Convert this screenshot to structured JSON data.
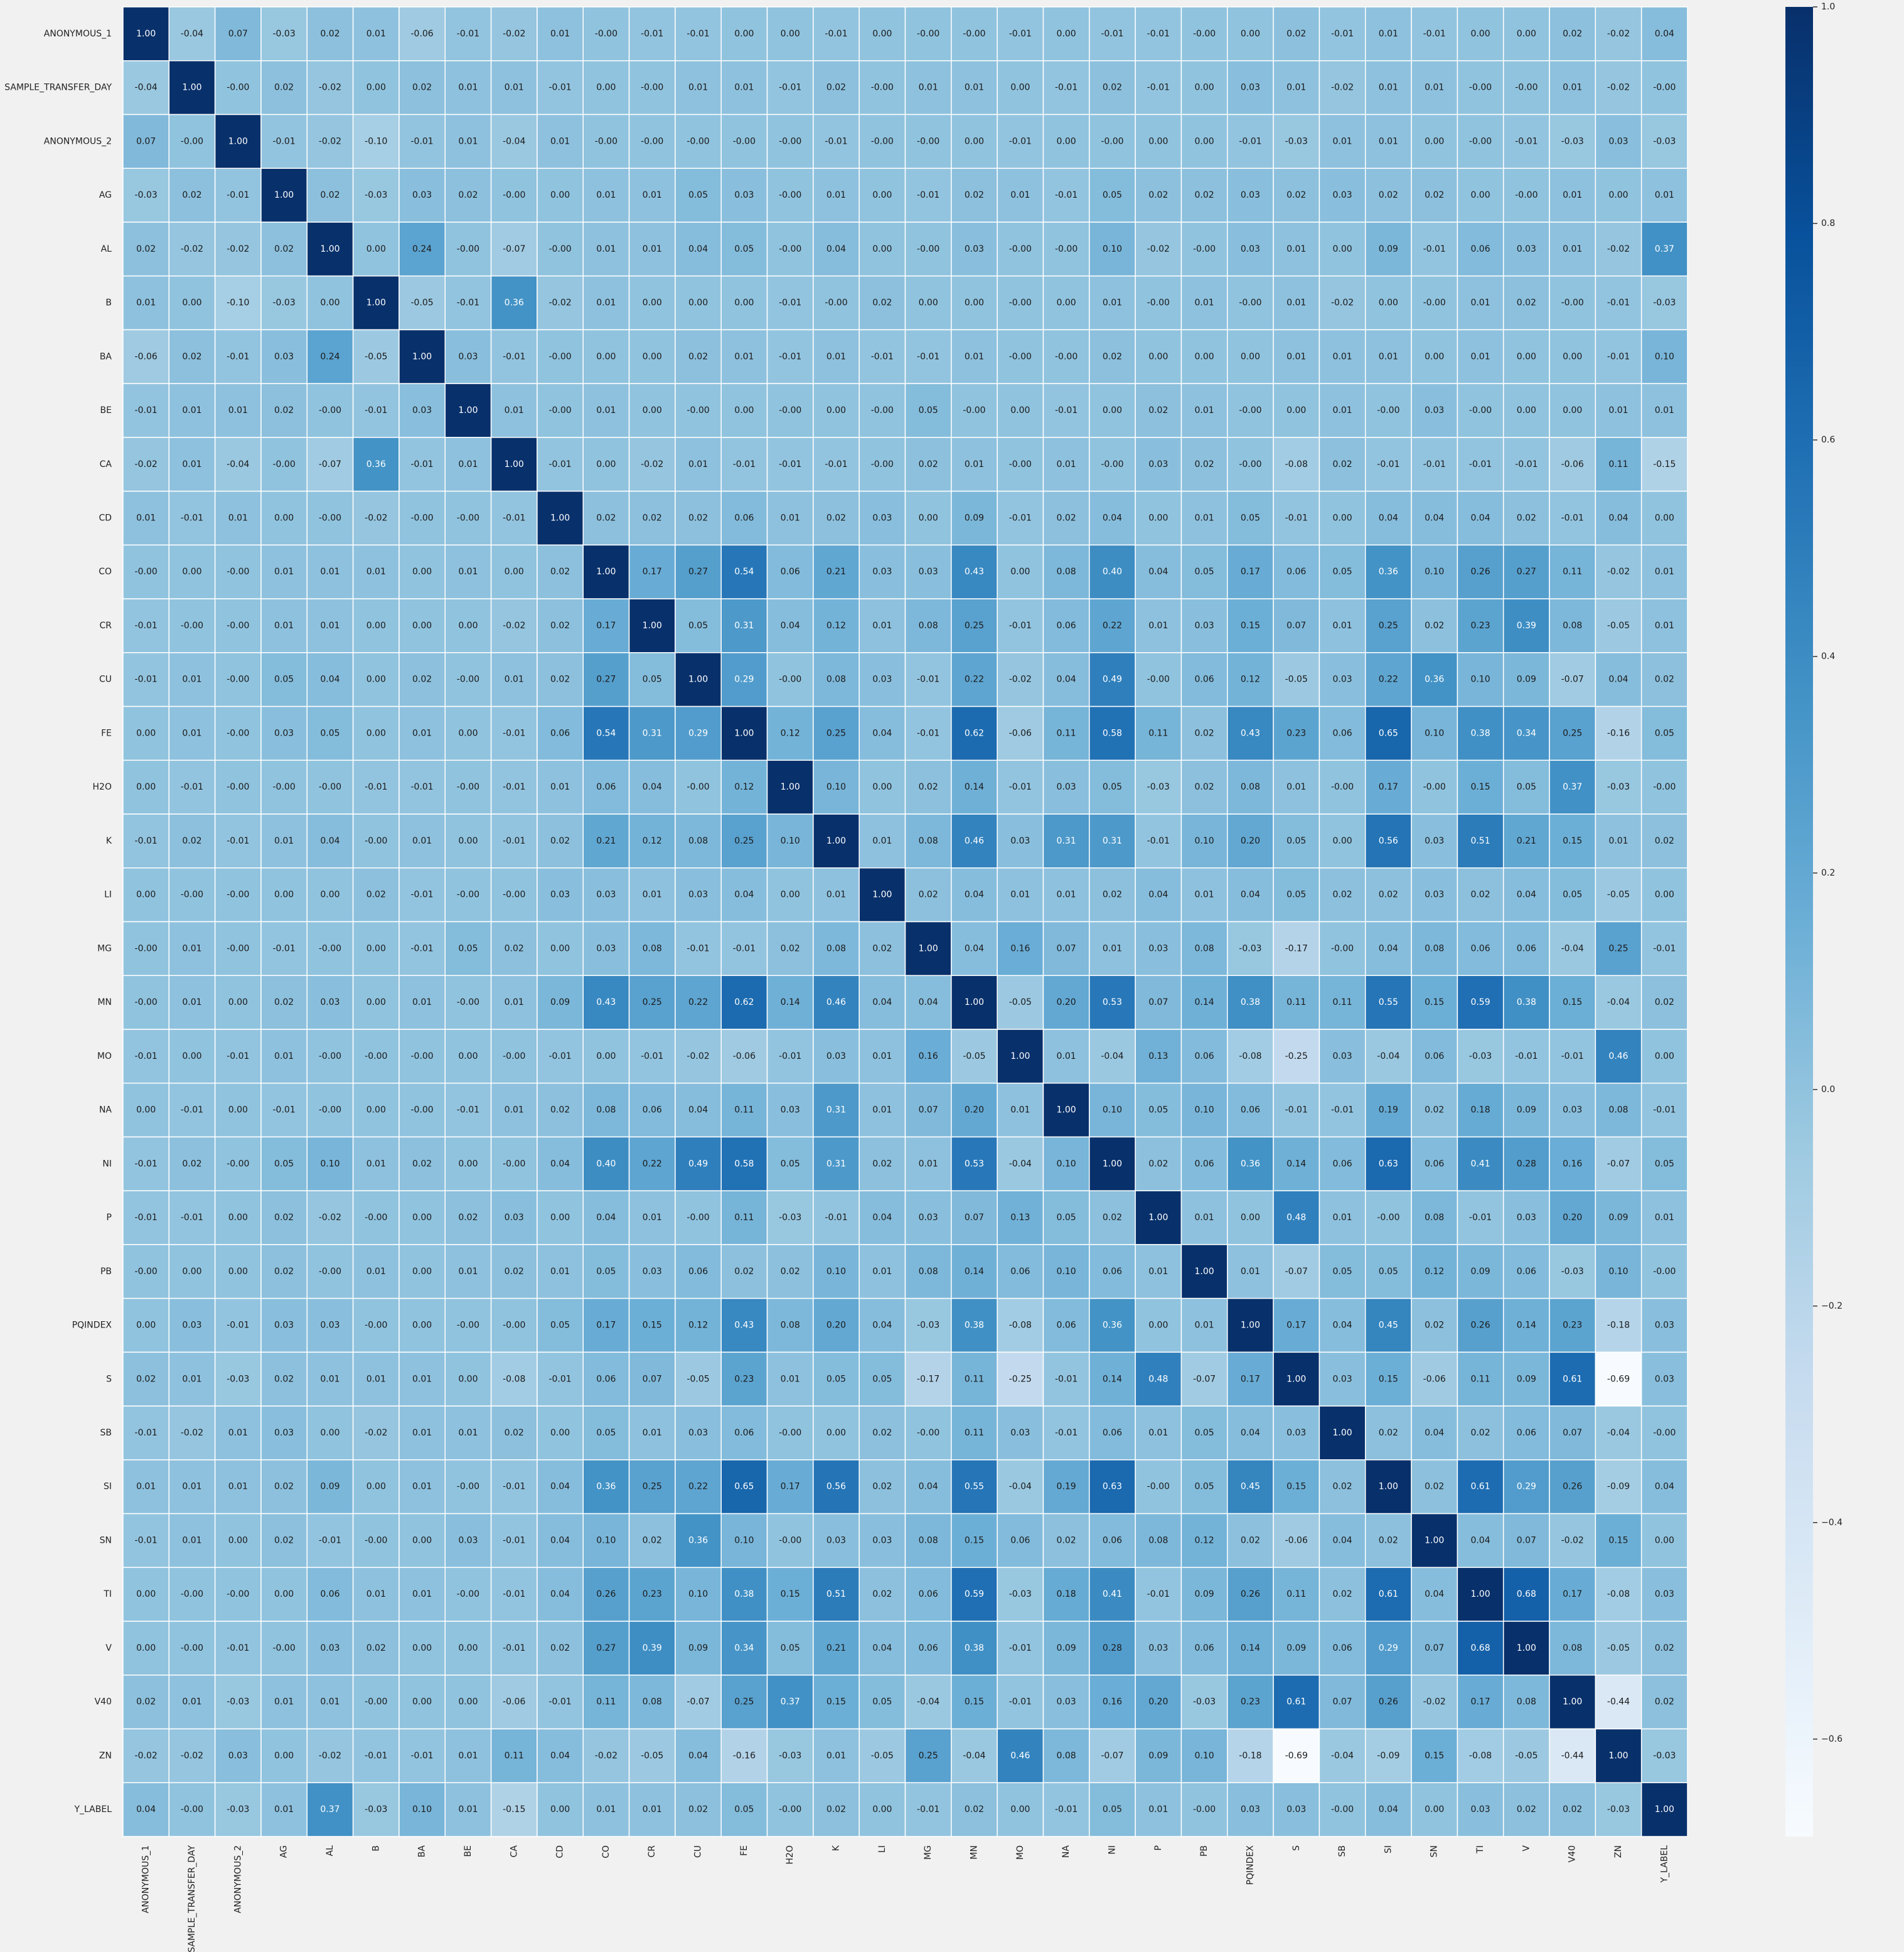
{
  "chart_data": {
    "type": "heatmap",
    "labels": [
      "ANONYMOUS_1",
      "SAMPLE_TRANSFER_DAY",
      "ANONYMOUS_2",
      "AG",
      "AL",
      "B",
      "BA",
      "BE",
      "CA",
      "CD",
      "CO",
      "CR",
      "CU",
      "FE",
      "H2O",
      "K",
      "LI",
      "MG",
      "MN",
      "MO",
      "NA",
      "NI",
      "P",
      "PB",
      "PQINDEX",
      "S",
      "SB",
      "SI",
      "SN",
      "TI",
      "V",
      "V40",
      "ZN",
      "Y_LABEL"
    ],
    "matrix": [
      [
        1.0,
        -0.04,
        0.07,
        -0.03,
        0.02,
        0.01,
        -0.06,
        -0.01,
        -0.02,
        0.01,
        -0.0,
        -0.01,
        -0.01,
        0.0,
        0.0,
        -0.01,
        0.0,
        -0.0,
        -0.0,
        -0.01,
        0.0,
        -0.01,
        -0.01,
        -0.0,
        0.0,
        0.02,
        -0.01,
        0.01,
        -0.01,
        0.0,
        0.0,
        0.02,
        -0.02,
        0.04
      ],
      [
        -0.04,
        1.0,
        -0.0,
        0.02,
        -0.02,
        0.0,
        0.02,
        0.01,
        0.01,
        -0.01,
        0.0,
        -0.0,
        0.01,
        0.01,
        -0.01,
        0.02,
        -0.0,
        0.01,
        0.01,
        0.0,
        -0.01,
        0.02,
        -0.01,
        0.0,
        0.03,
        0.01,
        -0.02,
        0.01,
        0.01,
        -0.0,
        -0.0,
        0.01,
        -0.02,
        -0.0
      ],
      [
        0.07,
        -0.0,
        1.0,
        -0.01,
        -0.02,
        -0.1,
        -0.01,
        0.01,
        -0.04,
        0.01,
        -0.0,
        -0.0,
        -0.0,
        -0.0,
        -0.0,
        -0.01,
        -0.0,
        -0.0,
        0.0,
        -0.01,
        0.0,
        -0.0,
        0.0,
        0.0,
        -0.01,
        -0.03,
        0.01,
        0.01,
        0.0,
        -0.0,
        -0.01,
        -0.03,
        0.03,
        -0.03
      ],
      [
        -0.03,
        0.02,
        -0.01,
        1.0,
        0.02,
        -0.03,
        0.03,
        0.02,
        -0.0,
        0.0,
        0.01,
        0.01,
        0.05,
        0.03,
        -0.0,
        0.01,
        0.0,
        -0.01,
        0.02,
        0.01,
        -0.01,
        0.05,
        0.02,
        0.02,
        0.03,
        0.02,
        0.03,
        0.02,
        0.02,
        0.0,
        -0.0,
        0.01,
        0.0,
        0.01
      ],
      [
        0.02,
        -0.02,
        -0.02,
        0.02,
        1.0,
        0.0,
        0.24,
        -0.0,
        -0.07,
        -0.0,
        0.01,
        0.01,
        0.04,
        0.05,
        -0.0,
        0.04,
        0.0,
        -0.0,
        0.03,
        -0.0,
        -0.0,
        0.1,
        -0.02,
        -0.0,
        0.03,
        0.01,
        0.0,
        0.09,
        -0.01,
        0.06,
        0.03,
        0.01,
        -0.02,
        0.37
      ],
      [
        0.01,
        0.0,
        -0.1,
        -0.03,
        0.0,
        1.0,
        -0.05,
        -0.01,
        0.36,
        -0.02,
        0.01,
        0.0,
        0.0,
        0.0,
        -0.01,
        -0.0,
        0.02,
        0.0,
        0.0,
        -0.0,
        0.0,
        0.01,
        -0.0,
        0.01,
        -0.0,
        0.01,
        -0.02,
        0.0,
        -0.0,
        0.01,
        0.02,
        -0.0,
        -0.01,
        -0.03
      ],
      [
        -0.06,
        0.02,
        -0.01,
        0.03,
        0.24,
        -0.05,
        1.0,
        0.03,
        -0.01,
        -0.0,
        0.0,
        0.0,
        0.02,
        0.01,
        -0.01,
        0.01,
        -0.01,
        -0.01,
        0.01,
        -0.0,
        -0.0,
        0.02,
        0.0,
        0.0,
        0.0,
        0.01,
        0.01,
        0.01,
        0.0,
        0.01,
        0.0,
        0.0,
        -0.01,
        0.1
      ],
      [
        -0.01,
        0.01,
        0.01,
        0.02,
        -0.0,
        -0.01,
        0.03,
        1.0,
        0.01,
        -0.0,
        0.01,
        0.0,
        -0.0,
        0.0,
        -0.0,
        0.0,
        -0.0,
        0.05,
        -0.0,
        0.0,
        -0.01,
        0.0,
        0.02,
        0.01,
        -0.0,
        0.0,
        0.01,
        -0.0,
        0.03,
        -0.0,
        0.0,
        0.0,
        0.01,
        0.01
      ],
      [
        -0.02,
        0.01,
        -0.04,
        -0.0,
        -0.07,
        0.36,
        -0.01,
        0.01,
        1.0,
        -0.01,
        0.0,
        -0.02,
        0.01,
        -0.01,
        -0.01,
        -0.01,
        -0.0,
        0.02,
        0.01,
        -0.0,
        0.01,
        -0.0,
        0.03,
        0.02,
        -0.0,
        -0.08,
        0.02,
        -0.01,
        -0.01,
        -0.01,
        -0.01,
        -0.06,
        0.11,
        -0.15
      ],
      [
        0.01,
        -0.01,
        0.01,
        0.0,
        -0.0,
        -0.02,
        -0.0,
        -0.0,
        -0.01,
        1.0,
        0.02,
        0.02,
        0.02,
        0.06,
        0.01,
        0.02,
        0.03,
        0.0,
        0.09,
        -0.01,
        0.02,
        0.04,
        0.0,
        0.01,
        0.05,
        -0.01,
        0.0,
        0.04,
        0.04,
        0.04,
        0.02,
        -0.01,
        0.04,
        0.0
      ],
      [
        -0.0,
        0.0,
        -0.0,
        0.01,
        0.01,
        0.01,
        0.0,
        0.01,
        0.0,
        0.02,
        1.0,
        0.17,
        0.27,
        0.54,
        0.06,
        0.21,
        0.03,
        0.03,
        0.43,
        0.0,
        0.08,
        0.4,
        0.04,
        0.05,
        0.17,
        0.06,
        0.05,
        0.36,
        0.1,
        0.26,
        0.27,
        0.11,
        -0.02,
        0.01
      ],
      [
        -0.01,
        -0.0,
        -0.0,
        0.01,
        0.01,
        0.0,
        0.0,
        0.0,
        -0.02,
        0.02,
        0.17,
        1.0,
        0.05,
        0.31,
        0.04,
        0.12,
        0.01,
        0.08,
        0.25,
        -0.01,
        0.06,
        0.22,
        0.01,
        0.03,
        0.15,
        0.07,
        0.01,
        0.25,
        0.02,
        0.23,
        0.39,
        0.08,
        -0.05,
        0.01
      ],
      [
        -0.01,
        0.01,
        -0.0,
        0.05,
        0.04,
        0.0,
        0.02,
        -0.0,
        0.01,
        0.02,
        0.27,
        0.05,
        1.0,
        0.29,
        -0.0,
        0.08,
        0.03,
        -0.01,
        0.22,
        -0.02,
        0.04,
        0.49,
        -0.0,
        0.06,
        0.12,
        -0.05,
        0.03,
        0.22,
        0.36,
        0.1,
        0.09,
        -0.07,
        0.04,
        0.02
      ],
      [
        0.0,
        0.01,
        -0.0,
        0.03,
        0.05,
        0.0,
        0.01,
        0.0,
        -0.01,
        0.06,
        0.54,
        0.31,
        0.29,
        1.0,
        0.12,
        0.25,
        0.04,
        -0.01,
        0.62,
        -0.06,
        0.11,
        0.58,
        0.11,
        0.02,
        0.43,
        0.23,
        0.06,
        0.65,
        0.1,
        0.38,
        0.34,
        0.25,
        -0.16,
        0.05
      ],
      [
        0.0,
        -0.01,
        -0.0,
        -0.0,
        -0.0,
        -0.01,
        -0.01,
        -0.0,
        -0.01,
        0.01,
        0.06,
        0.04,
        -0.0,
        0.12,
        1.0,
        0.1,
        0.0,
        0.02,
        0.14,
        -0.01,
        0.03,
        0.05,
        -0.03,
        0.02,
        0.08,
        0.01,
        -0.0,
        0.17,
        -0.0,
        0.15,
        0.05,
        0.37,
        -0.03,
        -0.0
      ],
      [
        -0.01,
        0.02,
        -0.01,
        0.01,
        0.04,
        -0.0,
        0.01,
        0.0,
        -0.01,
        0.02,
        0.21,
        0.12,
        0.08,
        0.25,
        0.1,
        1.0,
        0.01,
        0.08,
        0.46,
        0.03,
        0.31,
        0.31,
        -0.01,
        0.1,
        0.2,
        0.05,
        0.0,
        0.56,
        0.03,
        0.51,
        0.21,
        0.15,
        0.01,
        0.02
      ],
      [
        0.0,
        -0.0,
        -0.0,
        0.0,
        0.0,
        0.02,
        -0.01,
        -0.0,
        -0.0,
        0.03,
        0.03,
        0.01,
        0.03,
        0.04,
        0.0,
        0.01,
        1.0,
        0.02,
        0.04,
        0.01,
        0.01,
        0.02,
        0.04,
        0.01,
        0.04,
        0.05,
        0.02,
        0.02,
        0.03,
        0.02,
        0.04,
        0.05,
        -0.05,
        0.0
      ],
      [
        -0.0,
        0.01,
        -0.0,
        -0.01,
        -0.0,
        0.0,
        -0.01,
        0.05,
        0.02,
        0.0,
        0.03,
        0.08,
        -0.01,
        -0.01,
        0.02,
        0.08,
        0.02,
        1.0,
        0.04,
        0.16,
        0.07,
        0.01,
        0.03,
        0.08,
        -0.03,
        -0.17,
        -0.0,
        0.04,
        0.08,
        0.06,
        0.06,
        -0.04,
        0.25,
        -0.01
      ],
      [
        -0.0,
        0.01,
        0.0,
        0.02,
        0.03,
        0.0,
        0.01,
        -0.0,
        0.01,
        0.09,
        0.43,
        0.25,
        0.22,
        0.62,
        0.14,
        0.46,
        0.04,
        0.04,
        1.0,
        -0.05,
        0.2,
        0.53,
        0.07,
        0.14,
        0.38,
        0.11,
        0.11,
        0.55,
        0.15,
        0.59,
        0.38,
        0.15,
        -0.04,
        0.02
      ],
      [
        -0.01,
        0.0,
        -0.01,
        0.01,
        -0.0,
        -0.0,
        -0.0,
        0.0,
        -0.0,
        -0.01,
        0.0,
        -0.01,
        -0.02,
        -0.06,
        -0.01,
        0.03,
        0.01,
        0.16,
        -0.05,
        1.0,
        0.01,
        -0.04,
        0.13,
        0.06,
        -0.08,
        -0.25,
        0.03,
        -0.04,
        0.06,
        -0.03,
        -0.01,
        -0.01,
        0.46,
        0.0
      ],
      [
        0.0,
        -0.01,
        0.0,
        -0.01,
        -0.0,
        0.0,
        -0.0,
        -0.01,
        0.01,
        0.02,
        0.08,
        0.06,
        0.04,
        0.11,
        0.03,
        0.31,
        0.01,
        0.07,
        0.2,
        0.01,
        1.0,
        0.1,
        0.05,
        0.1,
        0.06,
        -0.01,
        -0.01,
        0.19,
        0.02,
        0.18,
        0.09,
        0.03,
        0.08,
        -0.01
      ],
      [
        -0.01,
        0.02,
        -0.0,
        0.05,
        0.1,
        0.01,
        0.02,
        0.0,
        -0.0,
        0.04,
        0.4,
        0.22,
        0.49,
        0.58,
        0.05,
        0.31,
        0.02,
        0.01,
        0.53,
        -0.04,
        0.1,
        1.0,
        0.02,
        0.06,
        0.36,
        0.14,
        0.06,
        0.63,
        0.06,
        0.41,
        0.28,
        0.16,
        -0.07,
        0.05
      ],
      [
        -0.01,
        -0.01,
        0.0,
        0.02,
        -0.02,
        -0.0,
        0.0,
        0.02,
        0.03,
        0.0,
        0.04,
        0.01,
        -0.0,
        0.11,
        -0.03,
        -0.01,
        0.04,
        0.03,
        0.07,
        0.13,
        0.05,
        0.02,
        1.0,
        0.01,
        0.0,
        0.48,
        0.01,
        -0.0,
        0.08,
        -0.01,
        0.03,
        0.2,
        0.09,
        0.01
      ],
      [
        -0.0,
        0.0,
        0.0,
        0.02,
        -0.0,
        0.01,
        0.0,
        0.01,
        0.02,
        0.01,
        0.05,
        0.03,
        0.06,
        0.02,
        0.02,
        0.1,
        0.01,
        0.08,
        0.14,
        0.06,
        0.1,
        0.06,
        0.01,
        1.0,
        0.01,
        -0.07,
        0.05,
        0.05,
        0.12,
        0.09,
        0.06,
        -0.03,
        0.1,
        -0.0
      ],
      [
        0.0,
        0.03,
        -0.01,
        0.03,
        0.03,
        -0.0,
        0.0,
        -0.0,
        -0.0,
        0.05,
        0.17,
        0.15,
        0.12,
        0.43,
        0.08,
        0.2,
        0.04,
        -0.03,
        0.38,
        -0.08,
        0.06,
        0.36,
        0.0,
        0.01,
        1.0,
        0.17,
        0.04,
        0.45,
        0.02,
        0.26,
        0.14,
        0.23,
        -0.18,
        0.03
      ],
      [
        0.02,
        0.01,
        -0.03,
        0.02,
        0.01,
        0.01,
        0.01,
        0.0,
        -0.08,
        -0.01,
        0.06,
        0.07,
        -0.05,
        0.23,
        0.01,
        0.05,
        0.05,
        -0.17,
        0.11,
        -0.25,
        -0.01,
        0.14,
        0.48,
        -0.07,
        0.17,
        1.0,
        0.03,
        0.15,
        -0.06,
        0.11,
        0.09,
        0.61,
        -0.69,
        0.03
      ],
      [
        -0.01,
        -0.02,
        0.01,
        0.03,
        0.0,
        -0.02,
        0.01,
        0.01,
        0.02,
        0.0,
        0.05,
        0.01,
        0.03,
        0.06,
        -0.0,
        0.0,
        0.02,
        -0.0,
        0.11,
        0.03,
        -0.01,
        0.06,
        0.01,
        0.05,
        0.04,
        0.03,
        1.0,
        0.02,
        0.04,
        0.02,
        0.06,
        0.07,
        -0.04,
        -0.0
      ],
      [
        0.01,
        0.01,
        0.01,
        0.02,
        0.09,
        0.0,
        0.01,
        -0.0,
        -0.01,
        0.04,
        0.36,
        0.25,
        0.22,
        0.65,
        0.17,
        0.56,
        0.02,
        0.04,
        0.55,
        -0.04,
        0.19,
        0.63,
        -0.0,
        0.05,
        0.45,
        0.15,
        0.02,
        1.0,
        0.02,
        0.61,
        0.29,
        0.26,
        -0.09,
        0.04
      ],
      [
        -0.01,
        0.01,
        0.0,
        0.02,
        -0.01,
        -0.0,
        0.0,
        0.03,
        -0.01,
        0.04,
        0.1,
        0.02,
        0.36,
        0.1,
        -0.0,
        0.03,
        0.03,
        0.08,
        0.15,
        0.06,
        0.02,
        0.06,
        0.08,
        0.12,
        0.02,
        -0.06,
        0.04,
        0.02,
        1.0,
        0.04,
        0.07,
        -0.02,
        0.15,
        0.0
      ],
      [
        0.0,
        -0.0,
        -0.0,
        0.0,
        0.06,
        0.01,
        0.01,
        -0.0,
        -0.01,
        0.04,
        0.26,
        0.23,
        0.1,
        0.38,
        0.15,
        0.51,
        0.02,
        0.06,
        0.59,
        -0.03,
        0.18,
        0.41,
        -0.01,
        0.09,
        0.26,
        0.11,
        0.02,
        0.61,
        0.04,
        1.0,
        0.68,
        0.17,
        -0.08,
        0.03
      ],
      [
        0.0,
        -0.0,
        -0.01,
        -0.0,
        0.03,
        0.02,
        0.0,
        0.0,
        -0.01,
        0.02,
        0.27,
        0.39,
        0.09,
        0.34,
        0.05,
        0.21,
        0.04,
        0.06,
        0.38,
        -0.01,
        0.09,
        0.28,
        0.03,
        0.06,
        0.14,
        0.09,
        0.06,
        0.29,
        0.07,
        0.68,
        1.0,
        0.08,
        -0.05,
        0.02
      ],
      [
        0.02,
        0.01,
        -0.03,
        0.01,
        0.01,
        -0.0,
        0.0,
        0.0,
        -0.06,
        -0.01,
        0.11,
        0.08,
        -0.07,
        0.25,
        0.37,
        0.15,
        0.05,
        -0.04,
        0.15,
        -0.01,
        0.03,
        0.16,
        0.2,
        -0.03,
        0.23,
        0.61,
        0.07,
        0.26,
        -0.02,
        0.17,
        0.08,
        1.0,
        -0.44,
        0.02
      ],
      [
        -0.02,
        -0.02,
        0.03,
        0.0,
        -0.02,
        -0.01,
        -0.01,
        0.01,
        0.11,
        0.04,
        -0.02,
        -0.05,
        0.04,
        -0.16,
        -0.03,
        0.01,
        -0.05,
        0.25,
        -0.04,
        0.46,
        0.08,
        -0.07,
        0.09,
        0.1,
        -0.18,
        -0.69,
        -0.04,
        -0.09,
        0.15,
        -0.08,
        -0.05,
        -0.44,
        1.0,
        -0.03
      ],
      [
        0.04,
        -0.0,
        -0.03,
        0.01,
        0.37,
        -0.03,
        0.1,
        0.01,
        -0.15,
        0.0,
        0.01,
        0.01,
        0.02,
        0.05,
        -0.0,
        0.02,
        0.0,
        -0.01,
        0.02,
        0.0,
        -0.01,
        0.05,
        0.01,
        -0.0,
        0.03,
        0.03,
        -0.0,
        0.04,
        0.0,
        0.03,
        0.02,
        0.02,
        -0.03,
        1.0
      ]
    ],
    "value_format": "2-decimal",
    "colormap": "Blues",
    "colorbar": {
      "vmin": -0.69,
      "vmax": 1.0,
      "ticks": [
        1.0,
        0.8,
        0.6,
        0.4,
        0.2,
        0.0,
        -0.2,
        -0.4,
        -0.6
      ],
      "tick_labels": [
        "1.0",
        "0.8",
        "0.6",
        "0.4",
        "0.2",
        "0.0",
        "−0.2",
        "−0.4",
        "−0.6"
      ]
    },
    "background": "#f1f1f1",
    "colors": [
      "#f7fbff",
      "#deebf7",
      "#c6dbef",
      "#9ecae1",
      "#6baed6",
      "#4292c6",
      "#2171b5",
      "#08519c",
      "#08306b"
    ]
  }
}
